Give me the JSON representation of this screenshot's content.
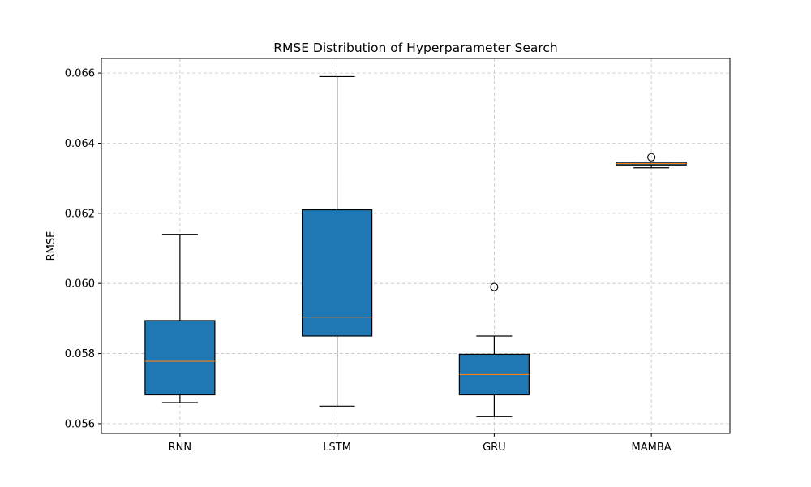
{
  "chart_data": {
    "type": "box",
    "title": "RMSE Distribution of Hyperparameter Search",
    "xlabel": "",
    "ylabel": "RMSE",
    "ylim": [
      0.05572,
      0.06642
    ],
    "yticks": [
      "0.056",
      "0.058",
      "0.060",
      "0.062",
      "0.064",
      "0.066"
    ],
    "ytick_values": [
      0.056,
      0.058,
      0.06,
      0.062,
      0.064,
      0.066
    ],
    "grid": true,
    "categories": [
      "RNN",
      "LSTM",
      "GRU",
      "MAMBA"
    ],
    "boxes": [
      {
        "category": "RNN",
        "whisker_low": 0.0566,
        "q1": 0.05682,
        "median": 0.05778,
        "q3": 0.05894,
        "whisker_high": 0.0614,
        "outliers": []
      },
      {
        "category": "LSTM",
        "whisker_low": 0.0565,
        "q1": 0.0585,
        "median": 0.05904,
        "q3": 0.0621,
        "whisker_high": 0.0659,
        "outliers": []
      },
      {
        "category": "GRU",
        "whisker_low": 0.0562,
        "q1": 0.05682,
        "median": 0.0574,
        "q3": 0.05798,
        "whisker_high": 0.0585,
        "outliers": [
          0.0599
        ]
      },
      {
        "category": "MAMBA",
        "whisker_low": 0.0633,
        "q1": 0.06338,
        "median": 0.06342,
        "q3": 0.06346,
        "whisker_high": 0.06346,
        "outliers": [
          0.0636
        ]
      }
    ],
    "colors": {
      "box_fill": "#1f77b4",
      "median": "#ff7f0e",
      "grid": "#b0b0b0",
      "edge": "#000000"
    }
  }
}
